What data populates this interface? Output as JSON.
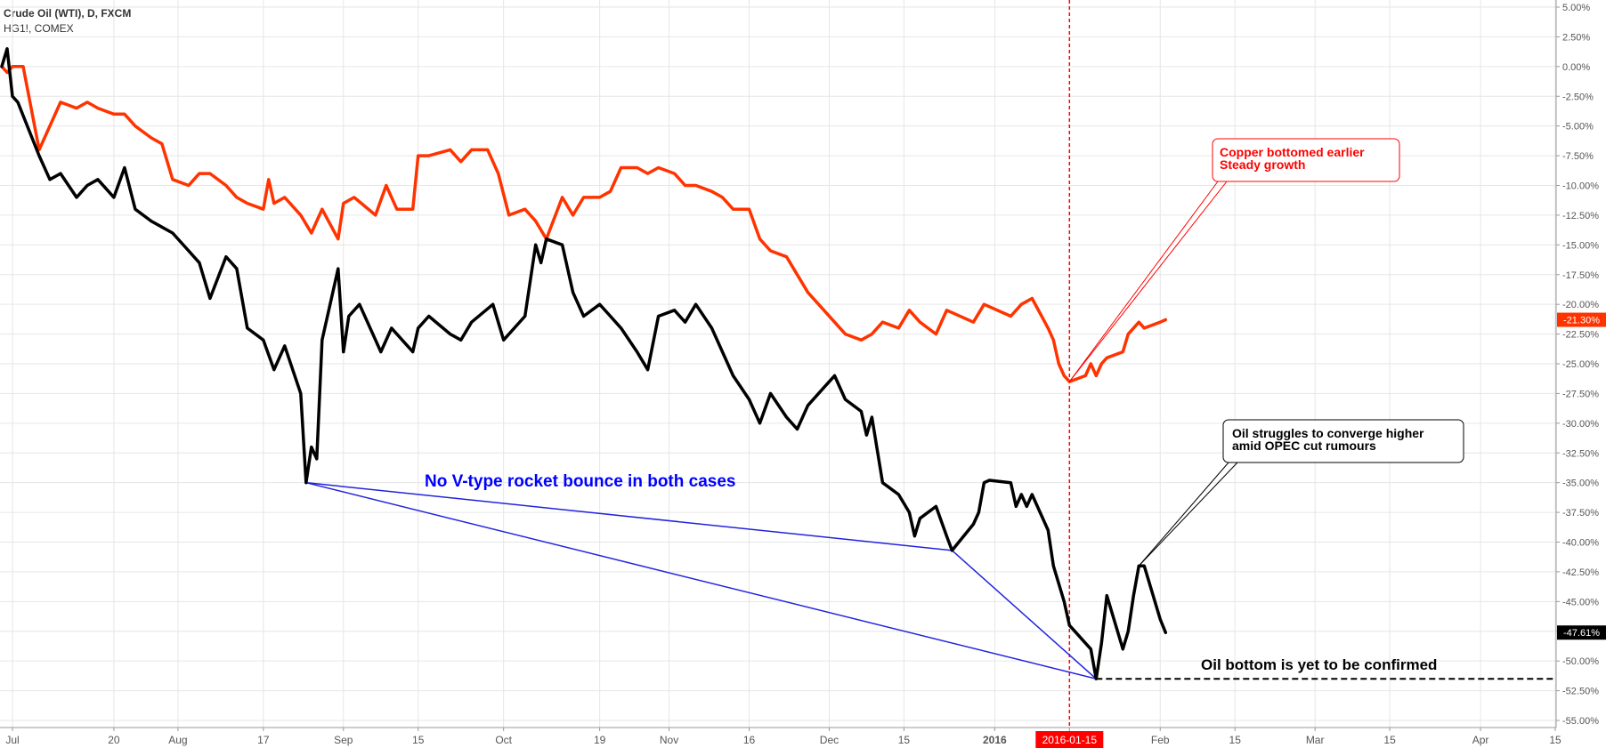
{
  "header": {
    "symbol_main": "Crude Oil (WTI), D, FXCM",
    "symbol_compare": "HG1!, COMEX"
  },
  "chart_data": {
    "type": "line",
    "x_ticks": [
      "Jul",
      "20",
      "Aug",
      "17",
      "Sep",
      "15",
      "Oct",
      "19",
      "Nov",
      "16",
      "Dec",
      "15",
      "2016",
      "2016-01-15",
      "Feb",
      "15",
      "Mar",
      "15",
      "Apr",
      "15"
    ],
    "x_tick_dates": [
      "2015-07-01",
      "2015-07-20",
      "2015-08-01",
      "2015-08-17",
      "2015-09-01",
      "2015-09-15",
      "2015-10-01",
      "2015-10-19",
      "2015-11-01",
      "2015-11-16",
      "2015-12-01",
      "2015-12-15",
      "2016-01-01",
      "2016-01-15",
      "2016-02-01",
      "2016-02-15",
      "2016-03-01",
      "2016-03-15",
      "2016-04-01",
      "2016-04-15"
    ],
    "y_ticks": [
      "5.00%",
      "2.50%",
      "0.00%",
      "-2.50%",
      "-5.00%",
      "-7.50%",
      "-10.00%",
      "-12.50%",
      "-15.00%",
      "-17.50%",
      "-20.00%",
      "-22.50%",
      "-25.00%",
      "-27.50%",
      "-30.00%",
      "-32.50%",
      "-35.00%",
      "-37.50%",
      "-40.00%",
      "-42.50%",
      "-45.00%",
      "-47.50%",
      "-50.00%",
      "-52.50%",
      "-55.00%"
    ],
    "ylim": [
      -55,
      5
    ],
    "y_unit": "%",
    "grid": true,
    "series": [
      {
        "name": "Crude Oil (WTI), D, FXCM",
        "color": "#000000",
        "last_label": "-47.61%",
        "points": [
          [
            "2015-06-29",
            0
          ],
          [
            "2015-06-30",
            1.5
          ],
          [
            "2015-07-01",
            -2.5
          ],
          [
            "2015-07-02",
            -3
          ],
          [
            "2015-07-06",
            -7.5
          ],
          [
            "2015-07-08",
            -9.5
          ],
          [
            "2015-07-10",
            -9.0
          ],
          [
            "2015-07-13",
            -11.0
          ],
          [
            "2015-07-15",
            -10.0
          ],
          [
            "2015-07-17",
            -9.5
          ],
          [
            "2015-07-20",
            -11.0
          ],
          [
            "2015-07-22",
            -8.5
          ],
          [
            "2015-07-24",
            -12.0
          ],
          [
            "2015-07-27",
            -13.0
          ],
          [
            "2015-07-29",
            -13.5
          ],
          [
            "2015-07-31",
            -14.0
          ],
          [
            "2015-08-03",
            -15.5
          ],
          [
            "2015-08-05",
            -16.5
          ],
          [
            "2015-08-07",
            -19.5
          ],
          [
            "2015-08-10",
            -16.0
          ],
          [
            "2015-08-12",
            -17.0
          ],
          [
            "2015-08-14",
            -22.0
          ],
          [
            "2015-08-17",
            -23.0
          ],
          [
            "2015-08-19",
            -25.5
          ],
          [
            "2015-08-21",
            -23.5
          ],
          [
            "2015-08-24",
            -27.5
          ],
          [
            "2015-08-25",
            -35.0
          ],
          [
            "2015-08-26",
            -32.0
          ],
          [
            "2015-08-27",
            -33.0
          ],
          [
            "2015-08-28",
            -23.0
          ],
          [
            "2015-08-31",
            -17.0
          ],
          [
            "2015-09-01",
            -24.0
          ],
          [
            "2015-09-02",
            -21.0
          ],
          [
            "2015-09-04",
            -20.0
          ],
          [
            "2015-09-08",
            -24.0
          ],
          [
            "2015-09-10",
            -22.0
          ],
          [
            "2015-09-14",
            -24.0
          ],
          [
            "2015-09-15",
            -22.0
          ],
          [
            "2015-09-17",
            -21.0
          ],
          [
            "2015-09-21",
            -22.5
          ],
          [
            "2015-09-23",
            -23.0
          ],
          [
            "2015-09-25",
            -21.5
          ],
          [
            "2015-09-29",
            -20.0
          ],
          [
            "2015-10-01",
            -23.0
          ],
          [
            "2015-10-05",
            -21.0
          ],
          [
            "2015-10-07",
            -15.0
          ],
          [
            "2015-10-08",
            -16.5
          ],
          [
            "2015-10-09",
            -14.5
          ],
          [
            "2015-10-12",
            -15.0
          ],
          [
            "2015-10-14",
            -19.0
          ],
          [
            "2015-10-16",
            -21.0
          ],
          [
            "2015-10-19",
            -20.0
          ],
          [
            "2015-10-21",
            -21.0
          ],
          [
            "2015-10-23",
            -22.0
          ],
          [
            "2015-10-26",
            -24.0
          ],
          [
            "2015-10-28",
            -25.5
          ],
          [
            "2015-10-30",
            -21.0
          ],
          [
            "2015-11-02",
            -20.5
          ],
          [
            "2015-11-04",
            -21.5
          ],
          [
            "2015-11-06",
            -20.0
          ],
          [
            "2015-11-09",
            -22.0
          ],
          [
            "2015-11-11",
            -24.0
          ],
          [
            "2015-11-13",
            -26.0
          ],
          [
            "2015-11-16",
            -28.0
          ],
          [
            "2015-11-18",
            -30.0
          ],
          [
            "2015-11-20",
            -27.5
          ],
          [
            "2015-11-23",
            -29.5
          ],
          [
            "2015-11-25",
            -30.5
          ],
          [
            "2015-11-27",
            -28.5
          ],
          [
            "2015-11-30",
            -27.0
          ],
          [
            "2015-12-02",
            -26.0
          ],
          [
            "2015-12-04",
            -28.0
          ],
          [
            "2015-12-07",
            -29.0
          ],
          [
            "2015-12-08",
            -31.0
          ],
          [
            "2015-12-09",
            -29.5
          ],
          [
            "2015-12-11",
            -35.0
          ],
          [
            "2015-12-14",
            -36.0
          ],
          [
            "2015-12-16",
            -37.5
          ],
          [
            "2015-12-17",
            -39.5
          ],
          [
            "2015-12-18",
            -38.0
          ],
          [
            "2015-12-21",
            -37.0
          ],
          [
            "2015-12-23",
            -39.5
          ],
          [
            "2015-12-24",
            -40.7
          ],
          [
            "2015-12-28",
            -38.5
          ],
          [
            "2015-12-29",
            -37.5
          ],
          [
            "2015-12-30",
            -35.0
          ],
          [
            "2015-12-31",
            -34.8
          ],
          [
            "2016-01-04",
            -35.0
          ],
          [
            "2016-01-05",
            -37.0
          ],
          [
            "2016-01-06",
            -36.0
          ],
          [
            "2016-01-07",
            -37.0
          ],
          [
            "2016-01-08",
            -36.0
          ],
          [
            "2016-01-11",
            -39.0
          ],
          [
            "2016-01-12",
            -42.0
          ],
          [
            "2016-01-13",
            -43.5
          ],
          [
            "2016-01-14",
            -45.0
          ],
          [
            "2016-01-15",
            -47.0
          ],
          [
            "2016-01-19",
            -49.0
          ],
          [
            "2016-01-20",
            -51.5
          ],
          [
            "2016-01-21",
            -48.5
          ],
          [
            "2016-01-22",
            -44.5
          ],
          [
            "2016-01-25",
            -49.0
          ],
          [
            "2016-01-26",
            -47.5
          ],
          [
            "2016-01-27",
            -44.5
          ],
          [
            "2016-01-28",
            -42.0
          ],
          [
            "2016-01-29",
            -42.0
          ],
          [
            "2016-02-01",
            -46.5
          ],
          [
            "2016-02-02",
            -47.61
          ]
        ]
      },
      {
        "name": "HG1!, COMEX",
        "color": "#ff3300",
        "last_label": "-21.30%",
        "points": [
          [
            "2015-06-29",
            0
          ],
          [
            "2015-06-30",
            -0.5
          ],
          [
            "2015-07-01",
            0
          ],
          [
            "2015-07-02",
            0
          ],
          [
            "2015-07-03",
            0
          ],
          [
            "2015-07-06",
            -7.0
          ],
          [
            "2015-07-08",
            -5.0
          ],
          [
            "2015-07-10",
            -3.0
          ],
          [
            "2015-07-13",
            -3.5
          ],
          [
            "2015-07-15",
            -3.0
          ],
          [
            "2015-07-17",
            -3.5
          ],
          [
            "2015-07-20",
            -4.0
          ],
          [
            "2015-07-22",
            -4.0
          ],
          [
            "2015-07-24",
            -5.0
          ],
          [
            "2015-07-27",
            -6.0
          ],
          [
            "2015-07-29",
            -6.5
          ],
          [
            "2015-07-31",
            -9.5
          ],
          [
            "2015-08-03",
            -10.0
          ],
          [
            "2015-08-05",
            -9.0
          ],
          [
            "2015-08-07",
            -9.0
          ],
          [
            "2015-08-10",
            -10.0
          ],
          [
            "2015-08-12",
            -11.0
          ],
          [
            "2015-08-14",
            -11.5
          ],
          [
            "2015-08-17",
            -12.0
          ],
          [
            "2015-08-18",
            -9.5
          ],
          [
            "2015-08-19",
            -11.5
          ],
          [
            "2015-08-21",
            -11.0
          ],
          [
            "2015-08-24",
            -12.5
          ],
          [
            "2015-08-26",
            -14.0
          ],
          [
            "2015-08-28",
            -12.0
          ],
          [
            "2015-08-31",
            -14.5
          ],
          [
            "2015-09-01",
            -11.5
          ],
          [
            "2015-09-03",
            -11.0
          ],
          [
            "2015-09-07",
            -12.5
          ],
          [
            "2015-09-09",
            -10.0
          ],
          [
            "2015-09-11",
            -12.0
          ],
          [
            "2015-09-14",
            -12.0
          ],
          [
            "2015-09-15",
            -7.5
          ],
          [
            "2015-09-17",
            -7.5
          ],
          [
            "2015-09-21",
            -7.0
          ],
          [
            "2015-09-23",
            -8.0
          ],
          [
            "2015-09-25",
            -7.0
          ],
          [
            "2015-09-28",
            -7.0
          ],
          [
            "2015-09-30",
            -9.0
          ],
          [
            "2015-10-02",
            -12.5
          ],
          [
            "2015-10-05",
            -12.0
          ],
          [
            "2015-10-07",
            -13.0
          ],
          [
            "2015-10-09",
            -14.5
          ],
          [
            "2015-10-12",
            -11.0
          ],
          [
            "2015-10-14",
            -12.5
          ],
          [
            "2015-10-16",
            -11.0
          ],
          [
            "2015-10-19",
            -11.0
          ],
          [
            "2015-10-21",
            -10.5
          ],
          [
            "2015-10-23",
            -8.5
          ],
          [
            "2015-10-26",
            -8.5
          ],
          [
            "2015-10-28",
            -9.0
          ],
          [
            "2015-10-30",
            -8.5
          ],
          [
            "2015-11-02",
            -9.0
          ],
          [
            "2015-11-04",
            -10.0
          ],
          [
            "2015-11-06",
            -10.0
          ],
          [
            "2015-11-09",
            -10.5
          ],
          [
            "2015-11-11",
            -11.0
          ],
          [
            "2015-11-13",
            -12.0
          ],
          [
            "2015-11-16",
            -12.0
          ],
          [
            "2015-11-18",
            -14.5
          ],
          [
            "2015-11-20",
            -15.5
          ],
          [
            "2015-11-23",
            -16.0
          ],
          [
            "2015-11-25",
            -17.5
          ],
          [
            "2015-11-27",
            -19.0
          ],
          [
            "2015-11-30",
            -20.5
          ],
          [
            "2015-12-02",
            -21.5
          ],
          [
            "2015-12-04",
            -22.5
          ],
          [
            "2015-12-07",
            -23.0
          ],
          [
            "2015-12-09",
            -22.5
          ],
          [
            "2015-12-11",
            -21.5
          ],
          [
            "2015-12-14",
            -22.0
          ],
          [
            "2015-12-16",
            -20.5
          ],
          [
            "2015-12-18",
            -21.5
          ],
          [
            "2015-12-21",
            -22.5
          ],
          [
            "2015-12-23",
            -20.5
          ],
          [
            "2015-12-28",
            -21.5
          ],
          [
            "2015-12-30",
            -20.0
          ],
          [
            "2016-01-04",
            -21.0
          ],
          [
            "2016-01-06",
            -20.0
          ],
          [
            "2016-01-08",
            -19.5
          ],
          [
            "2016-01-11",
            -22.0
          ],
          [
            "2016-01-12",
            -23.0
          ],
          [
            "2016-01-13",
            -25.0
          ],
          [
            "2016-01-14",
            -26.0
          ],
          [
            "2016-01-15",
            -26.5
          ],
          [
            "2016-01-18",
            -26.0
          ],
          [
            "2016-01-19",
            -25.0
          ],
          [
            "2016-01-20",
            -26.0
          ],
          [
            "2016-01-21",
            -25.0
          ],
          [
            "2016-01-22",
            -24.5
          ],
          [
            "2016-01-25",
            -24.0
          ],
          [
            "2016-01-26",
            -22.5
          ],
          [
            "2016-01-27",
            -22.0
          ],
          [
            "2016-01-28",
            -21.5
          ],
          [
            "2016-01-29",
            -22.0
          ],
          [
            "2016-02-01",
            -21.5
          ],
          [
            "2016-02-02",
            -21.3
          ]
        ]
      }
    ],
    "marker_date": "2016-01-15",
    "marker_color": "#ff0000",
    "reference_line": {
      "value": -51.5,
      "from": "2016-01-20",
      "style": "dashed",
      "color": "#000000"
    },
    "trendlines": {
      "color": "#2222dd",
      "segments": [
        [
          [
            "2015-08-25",
            -35.0
          ],
          [
            "2015-12-24",
            -40.7
          ]
        ],
        [
          [
            "2015-08-25",
            -35.0
          ],
          [
            "2016-01-20",
            -51.5
          ]
        ],
        [
          [
            "2015-12-24",
            -40.7
          ],
          [
            "2016-01-20",
            -51.5
          ]
        ]
      ]
    },
    "annotations": [
      {
        "id": "copper",
        "lines": [
          "Copper bottomed earlier",
          "Steady growth"
        ],
        "color": "#ff0000",
        "pointer_date": "2016-01-15",
        "pointer_value": -26.5
      },
      {
        "id": "oil-struggle",
        "lines": [
          "Oil struggles to converge higher",
          "amid OPEC cut rumours"
        ],
        "color": "#000000",
        "pointer_date": "2016-01-28",
        "pointer_value": -42.0
      },
      {
        "id": "oil-bottom",
        "lines": [
          "Oil bottom is yet to be confirmed"
        ],
        "color": "#000000"
      },
      {
        "id": "no-v",
        "lines": [
          "No V-type rocket bounce in both cases"
        ],
        "color": "#0000ff"
      }
    ]
  }
}
